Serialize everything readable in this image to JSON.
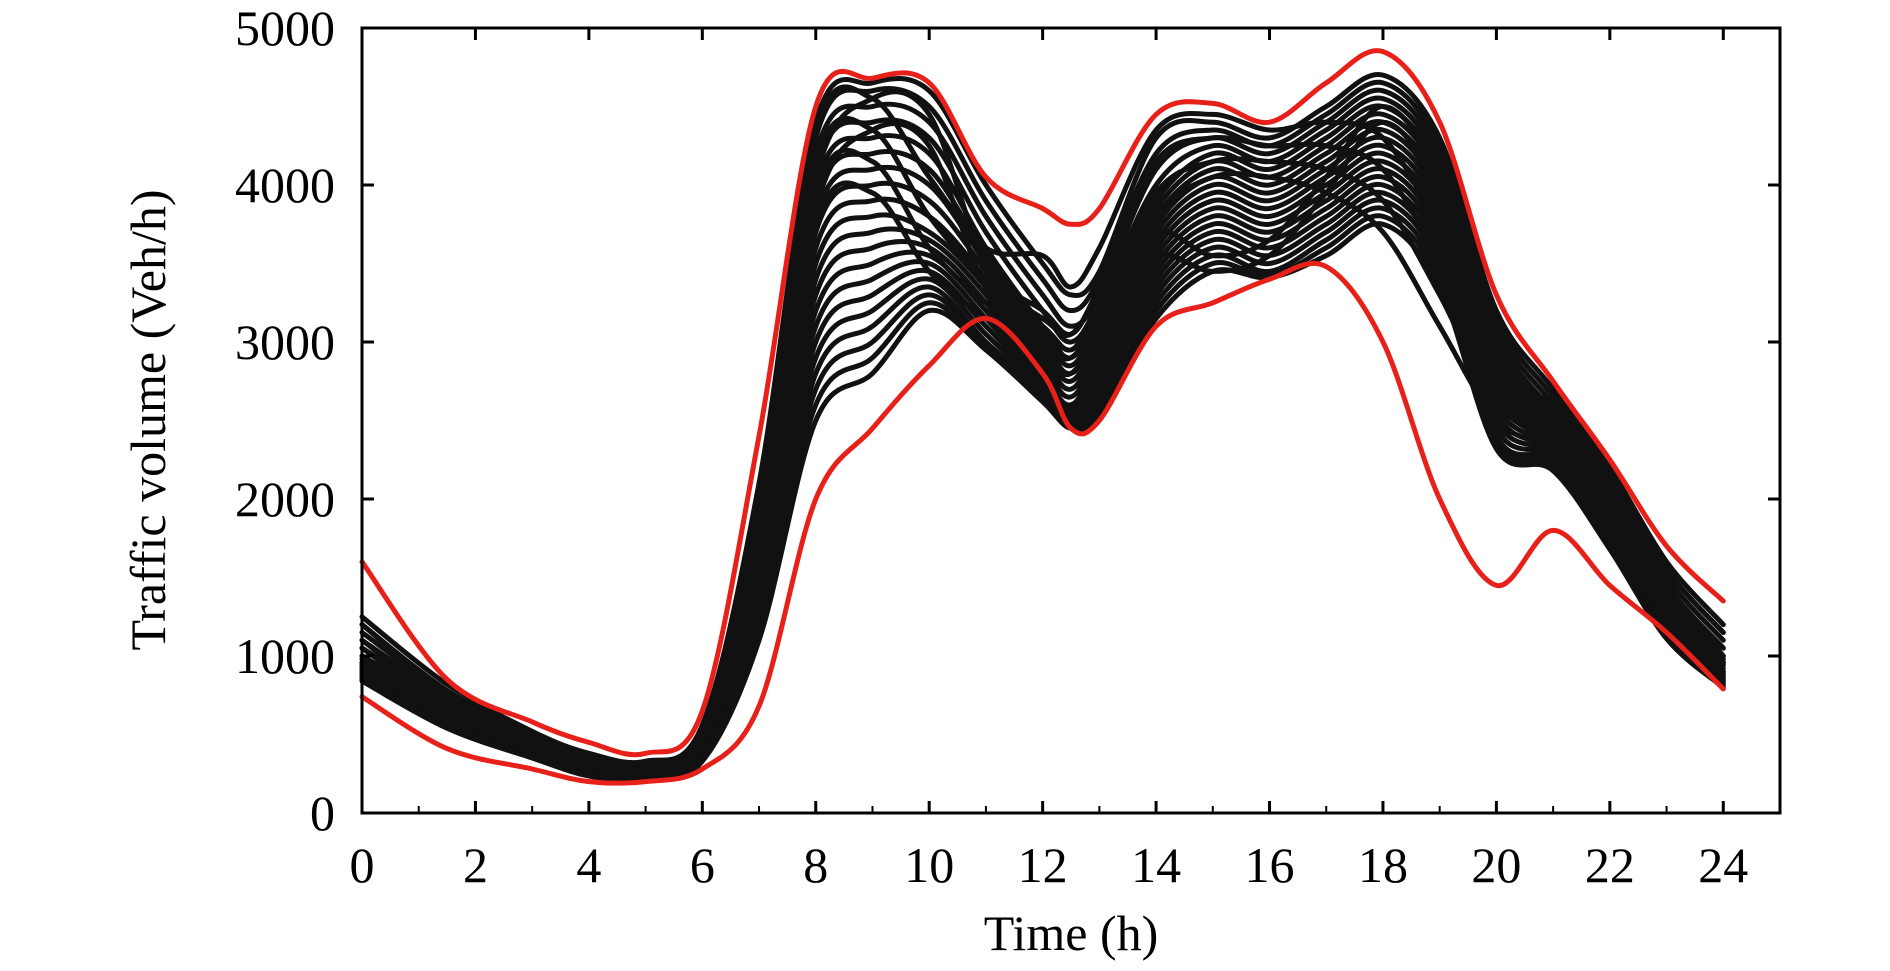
{
  "chart_data": {
    "type": "line",
    "xlabel": "Time (h)",
    "ylabel": "Traffic volume (Veh/h)",
    "xlim": [
      0,
      25
    ],
    "ylim": [
      0,
      5000
    ],
    "x_ticks": [
      0,
      2,
      4,
      6,
      8,
      10,
      12,
      14,
      16,
      18,
      20,
      22,
      24
    ],
    "x_tick_labels": [
      "0",
      "2",
      "4",
      "6",
      "8",
      "10",
      "12",
      "14",
      "16",
      "18",
      "20",
      "22",
      "24"
    ],
    "y_ticks": [
      0,
      1000,
      2000,
      3000,
      4000,
      5000
    ],
    "y_tick_labels": [
      "0",
      "1000",
      "2000",
      "3000",
      "4000",
      "5000"
    ],
    "grid": false,
    "x": [
      0,
      1.5,
      3,
      4,
      5,
      6,
      7,
      8,
      9,
      10,
      11,
      12,
      12.5,
      13,
      14,
      15,
      16,
      17,
      18,
      19,
      20,
      21,
      22,
      23,
      24
    ],
    "envelope": [
      {
        "role": "upper",
        "color": "#e8201a",
        "values": [
          1600,
          850,
          580,
          450,
          380,
          650,
          2400,
          4500,
          4680,
          4650,
          4050,
          3850,
          3750,
          3850,
          4450,
          4520,
          4400,
          4650,
          4850,
          4400,
          3300,
          2750,
          2250,
          1700,
          1350
        ]
      },
      {
        "role": "lower",
        "color": "#e8201a",
        "values": [
          740,
          410,
          280,
          200,
          200,
          280,
          680,
          2000,
          2450,
          2850,
          3150,
          2800,
          2450,
          2500,
          3100,
          3250,
          3400,
          3480,
          3000,
          2000,
          1450,
          1800,
          1450,
          1150,
          790
        ]
      }
    ],
    "series_color": "#111111",
    "series": [
      {
        "values": [
          1250,
          820,
          520,
          380,
          330,
          560,
          2100,
          4400,
          4650,
          4600,
          4000,
          3500,
          3300,
          3450,
          4300,
          4400,
          4300,
          4500,
          4700,
          4300,
          3200,
          2700,
          2200,
          1600,
          1200
        ]
      },
      {
        "values": [
          1200,
          780,
          500,
          360,
          310,
          540,
          2000,
          4300,
          4600,
          4500,
          3900,
          3400,
          3200,
          3400,
          4200,
          4350,
          4250,
          4450,
          4650,
          4250,
          3150,
          2650,
          2150,
          1550,
          1150
        ]
      },
      {
        "values": [
          1150,
          760,
          480,
          340,
          300,
          520,
          1950,
          4200,
          4500,
          4400,
          3800,
          3300,
          3100,
          3300,
          4100,
          4300,
          4200,
          4400,
          4600,
          4200,
          3100,
          2600,
          2100,
          1500,
          1100
        ]
      },
      {
        "values": [
          1100,
          740,
          460,
          330,
          290,
          500,
          1900,
          4100,
          4400,
          4300,
          3700,
          3200,
          3000,
          3250,
          4000,
          4250,
          4150,
          4350,
          4550,
          4150,
          3050,
          2550,
          2050,
          1450,
          1050
        ]
      },
      {
        "values": [
          1050,
          720,
          450,
          320,
          280,
          480,
          1850,
          4000,
          4300,
          4200,
          3600,
          3100,
          2900,
          3200,
          3900,
          4200,
          4100,
          4300,
          4500,
          4100,
          3000,
          2500,
          2000,
          1400,
          1000
        ]
      },
      {
        "values": [
          1000,
          700,
          440,
          310,
          270,
          470,
          1800,
          3900,
          4200,
          4100,
          3550,
          3050,
          2850,
          3150,
          3850,
          4150,
          4050,
          4250,
          4450,
          4050,
          2950,
          2480,
          1980,
          1380,
          980
        ]
      },
      {
        "values": [
          980,
          680,
          430,
          300,
          265,
          460,
          1750,
          3800,
          4100,
          4000,
          3500,
          3000,
          2800,
          3100,
          3800,
          4100,
          4000,
          4200,
          4400,
          4000,
          2900,
          2450,
          1950,
          1350,
          960
        ]
      },
      {
        "values": [
          960,
          660,
          420,
          295,
          260,
          450,
          1700,
          3700,
          4000,
          3900,
          3450,
          2950,
          2750,
          3050,
          3750,
          4050,
          3950,
          4150,
          4350,
          3950,
          2850,
          2420,
          1920,
          1320,
          940
        ]
      },
      {
        "values": [
          950,
          650,
          410,
          290,
          255,
          440,
          1650,
          3600,
          3900,
          3800,
          3400,
          2900,
          2700,
          3000,
          3700,
          4000,
          3900,
          4100,
          4300,
          3900,
          2800,
          2400,
          1900,
          1300,
          920
        ]
      },
      {
        "values": [
          940,
          640,
          400,
          285,
          250,
          430,
          1600,
          3500,
          3800,
          3700,
          3350,
          2850,
          2650,
          2950,
          3650,
          3950,
          3850,
          4050,
          4250,
          3850,
          2750,
          2380,
          1880,
          1280,
          900
        ]
      },
      {
        "values": [
          930,
          630,
          395,
          280,
          245,
          420,
          1550,
          3400,
          3700,
          3650,
          3300,
          2800,
          2600,
          2900,
          3600,
          3900,
          3800,
          4000,
          4200,
          3800,
          2700,
          2360,
          1860,
          1260,
          890
        ]
      },
      {
        "values": [
          920,
          620,
          390,
          275,
          240,
          410,
          1500,
          3300,
          3600,
          3600,
          3250,
          2780,
          2580,
          2850,
          3550,
          3850,
          3750,
          3950,
          4150,
          3750,
          2650,
          2340,
          1840,
          1240,
          880
        ]
      },
      {
        "values": [
          910,
          610,
          385,
          270,
          235,
          400,
          1450,
          3200,
          3500,
          3550,
          3200,
          2760,
          2560,
          2800,
          3500,
          3800,
          3700,
          3900,
          4100,
          3700,
          2600,
          2320,
          1820,
          1220,
          870
        ]
      },
      {
        "values": [
          900,
          600,
          380,
          265,
          230,
          390,
          1400,
          3100,
          3400,
          3500,
          3150,
          2740,
          2540,
          2750,
          3450,
          3750,
          3650,
          3850,
          4050,
          3650,
          2550,
          2300,
          1800,
          1200,
          860
        ]
      },
      {
        "values": [
          890,
          590,
          375,
          260,
          225,
          380,
          1350,
          3000,
          3300,
          3450,
          3100,
          2720,
          2520,
          2700,
          3400,
          3700,
          3600,
          3800,
          4000,
          3600,
          2500,
          2280,
          1780,
          1180,
          850
        ]
      },
      {
        "values": [
          880,
          580,
          370,
          255,
          220,
          370,
          1300,
          2900,
          3200,
          3400,
          3050,
          2700,
          2500,
          2650,
          3350,
          3650,
          3550,
          3750,
          3950,
          3550,
          2450,
          2260,
          1760,
          1160,
          840
        ]
      },
      {
        "values": [
          870,
          570,
          365,
          250,
          215,
          360,
          1250,
          2800,
          3100,
          3350,
          3000,
          2680,
          2480,
          2600,
          3300,
          3600,
          3500,
          3700,
          3900,
          3500,
          2400,
          2240,
          1740,
          1140,
          830
        ]
      },
      {
        "values": [
          860,
          560,
          360,
          245,
          210,
          350,
          1200,
          2700,
          3000,
          3300,
          2980,
          2660,
          2460,
          2580,
          3250,
          3550,
          3450,
          3650,
          3850,
          3450,
          2380,
          2220,
          1720,
          1130,
          820
        ]
      },
      {
        "values": [
          850,
          550,
          355,
          240,
          208,
          340,
          1150,
          2600,
          2900,
          3250,
          2960,
          2640,
          2450,
          2560,
          3200,
          3500,
          3420,
          3600,
          3800,
          3400,
          2350,
          2200,
          1700,
          1120,
          810
        ]
      },
      {
        "values": [
          840,
          540,
          350,
          235,
          205,
          330,
          1100,
          2500,
          2800,
          3200,
          2950,
          2620,
          2450,
          2540,
          3150,
          3450,
          3410,
          3550,
          3750,
          3350,
          2320,
          2180,
          1680,
          1110,
          800
        ]
      },
      {
        "values": [
          1200,
          760,
          480,
          350,
          300,
          520,
          2050,
          4350,
          4550,
          4050,
          3600,
          3550,
          3350,
          3600,
          4350,
          4450,
          4350,
          4400,
          4300,
          3700,
          2800,
          2600,
          2150,
          1550,
          1150
        ]
      },
      {
        "values": [
          1100,
          700,
          450,
          320,
          280,
          480,
          1900,
          4150,
          4350,
          3800,
          3400,
          3150,
          3050,
          3350,
          4150,
          4300,
          4250,
          4250,
          4100,
          3500,
          2700,
          2500,
          2050,
          1450,
          1050
        ]
      },
      {
        "values": [
          1000,
          660,
          420,
          300,
          260,
          450,
          1750,
          3950,
          4150,
          3600,
          3250,
          3000,
          2900,
          3200,
          3950,
          4150,
          4150,
          4100,
          3900,
          3300,
          2600,
          2400,
          1950,
          1350,
          950
        ]
      },
      {
        "values": [
          950,
          630,
          400,
          290,
          250,
          430,
          1650,
          3750,
          3950,
          3450,
          3150,
          2900,
          2800,
          3100,
          3800,
          4050,
          4050,
          3950,
          3700,
          3100,
          2500,
          2300,
          1850,
          1250,
          900
        ]
      },
      {
        "values": [
          1050,
          680,
          430,
          310,
          270,
          460,
          1800,
          4050,
          4550,
          4450,
          3500,
          3200,
          3050,
          3300,
          3700,
          3550,
          3650,
          4050,
          4500,
          4050,
          3000,
          2550,
          2050,
          1450,
          1000
        ]
      },
      {
        "values": [
          1000,
          650,
          410,
          300,
          260,
          440,
          1700,
          3850,
          4350,
          4250,
          3350,
          3100,
          2950,
          3200,
          3550,
          3450,
          3550,
          3950,
          4400,
          3950,
          2950,
          2500,
          2000,
          1400,
          960
        ]
      }
    ]
  }
}
